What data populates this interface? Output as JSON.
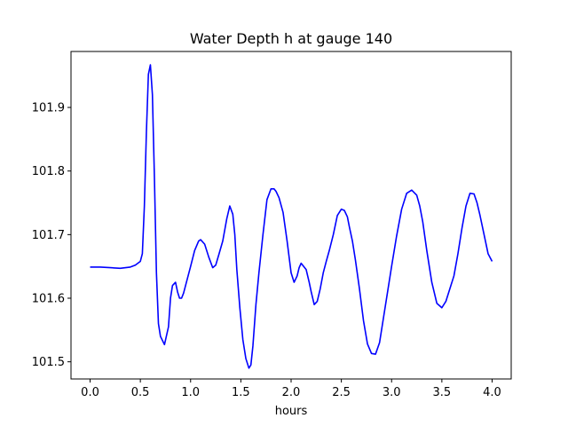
{
  "chart_data": {
    "type": "line",
    "title": "Water Depth h at gauge 140",
    "xlabel": "hours",
    "ylabel": "",
    "xlim": [
      -0.19,
      4.19
    ],
    "ylim": [
      101.473,
      101.988
    ],
    "grid": false,
    "x_ticks": [
      0.0,
      0.5,
      1.0,
      1.5,
      2.0,
      2.5,
      3.0,
      3.5,
      4.0
    ],
    "x_tick_labels": [
      "0.0",
      "0.5",
      "1.0",
      "1.5",
      "2.0",
      "2.5",
      "3.0",
      "3.5",
      "4.0"
    ],
    "y_ticks": [
      101.5,
      101.6,
      101.7,
      101.8,
      101.9
    ],
    "y_tick_labels": [
      "101.5",
      "101.6",
      "101.7",
      "101.8",
      "101.9"
    ],
    "series": [
      {
        "color": "#0000ff",
        "x": [
          0.0,
          0.1,
          0.2,
          0.3,
          0.4,
          0.45,
          0.5,
          0.52,
          0.54,
          0.56,
          0.58,
          0.6,
          0.62,
          0.64,
          0.66,
          0.68,
          0.7,
          0.74,
          0.78,
          0.8,
          0.82,
          0.85,
          0.87,
          0.89,
          0.91,
          0.93,
          0.95,
          1.0,
          1.04,
          1.08,
          1.1,
          1.14,
          1.18,
          1.22,
          1.25,
          1.28,
          1.32,
          1.36,
          1.39,
          1.42,
          1.44,
          1.46,
          1.49,
          1.52,
          1.55,
          1.58,
          1.6,
          1.62,
          1.65,
          1.68,
          1.72,
          1.76,
          1.8,
          1.83,
          1.85,
          1.88,
          1.92,
          1.96,
          2.0,
          2.03,
          2.06,
          2.08,
          2.1,
          2.15,
          2.18,
          2.2,
          2.23,
          2.26,
          2.29,
          2.32,
          2.35,
          2.38,
          2.42,
          2.46,
          2.5,
          2.53,
          2.56,
          2.58,
          2.61,
          2.64,
          2.68,
          2.72,
          2.76,
          2.8,
          2.84,
          2.88,
          2.92,
          2.96,
          3.0,
          3.05,
          3.1,
          3.15,
          3.2,
          3.25,
          3.28,
          3.31,
          3.35,
          3.4,
          3.45,
          3.5,
          3.54,
          3.58,
          3.62,
          3.66,
          3.7,
          3.74,
          3.78,
          3.82,
          3.85,
          3.88,
          3.92,
          3.96,
          4.0
        ],
        "y": [
          101.649,
          101.649,
          101.648,
          101.647,
          101.649,
          101.652,
          101.658,
          101.67,
          101.745,
          101.86,
          101.952,
          101.967,
          101.92,
          101.79,
          101.64,
          101.56,
          101.54,
          101.527,
          101.555,
          101.6,
          101.62,
          101.625,
          101.61,
          101.6,
          101.6,
          101.608,
          101.62,
          101.65,
          101.675,
          101.69,
          101.692,
          101.685,
          101.665,
          101.648,
          101.652,
          101.668,
          101.69,
          101.725,
          101.745,
          101.732,
          101.7,
          101.645,
          101.585,
          101.535,
          101.505,
          101.49,
          101.495,
          101.525,
          101.59,
          101.64,
          101.7,
          101.755,
          101.772,
          101.772,
          101.768,
          101.758,
          101.735,
          101.69,
          101.64,
          101.625,
          101.635,
          101.648,
          101.655,
          101.645,
          101.625,
          101.61,
          101.59,
          101.595,
          101.615,
          101.64,
          101.658,
          101.675,
          101.7,
          101.73,
          101.74,
          101.738,
          101.728,
          101.712,
          101.69,
          101.66,
          101.615,
          101.565,
          101.528,
          101.513,
          101.512,
          101.53,
          101.57,
          101.61,
          101.65,
          101.698,
          101.74,
          101.765,
          101.77,
          101.762,
          101.745,
          101.72,
          101.675,
          101.625,
          101.592,
          101.585,
          101.595,
          101.615,
          101.635,
          101.67,
          101.71,
          101.745,
          101.765,
          101.764,
          101.75,
          101.73,
          101.7,
          101.67,
          101.658
        ]
      }
    ]
  }
}
